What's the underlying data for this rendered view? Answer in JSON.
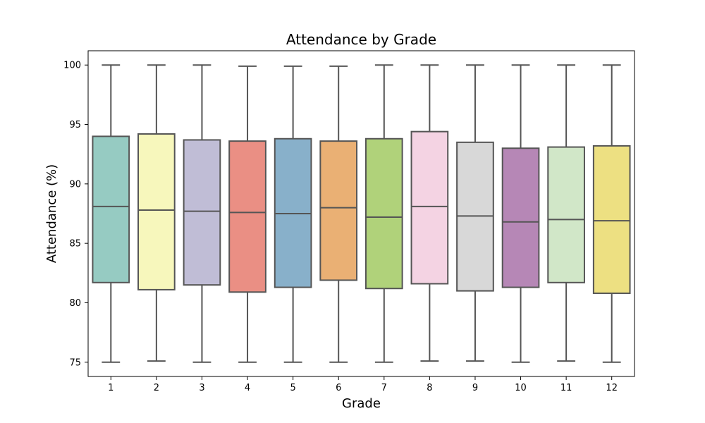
{
  "chart_data": {
    "type": "box",
    "title": "Attendance by Grade",
    "xlabel": "Grade",
    "ylabel": "Attendance (%)",
    "ylim": [
      73.8,
      101.2
    ],
    "yticks": [
      75,
      80,
      85,
      90,
      95,
      100
    ],
    "grid": false,
    "box_edge_color": "#555555",
    "categories": [
      "1",
      "2",
      "3",
      "4",
      "5",
      "6",
      "7",
      "8",
      "9",
      "10",
      "11",
      "12"
    ],
    "boxes": [
      {
        "category": "1",
        "min": 75.0,
        "q1": 81.7,
        "median": 88.1,
        "q3": 94.0,
        "max": 100.0,
        "color": "#96cbc2"
      },
      {
        "category": "2",
        "min": 75.1,
        "q1": 81.1,
        "median": 87.8,
        "q3": 94.2,
        "max": 100.0,
        "color": "#f7f7bc"
      },
      {
        "category": "3",
        "min": 75.0,
        "q1": 81.5,
        "median": 87.7,
        "q3": 93.7,
        "max": 100.0,
        "color": "#c0bdd6"
      },
      {
        "category": "4",
        "min": 75.0,
        "q1": 80.9,
        "median": 87.6,
        "q3": 93.6,
        "max": 99.9,
        "color": "#ea8f84"
      },
      {
        "category": "5",
        "min": 75.0,
        "q1": 81.3,
        "median": 87.5,
        "q3": 93.8,
        "max": 99.9,
        "color": "#88b0ca"
      },
      {
        "category": "6",
        "min": 75.0,
        "q1": 81.9,
        "median": 88.0,
        "q3": 93.6,
        "max": 99.9,
        "color": "#eab074"
      },
      {
        "category": "7",
        "min": 75.0,
        "q1": 81.2,
        "median": 87.2,
        "q3": 93.8,
        "max": 100.0,
        "color": "#b0d27a"
      },
      {
        "category": "8",
        "min": 75.1,
        "q1": 81.6,
        "median": 88.1,
        "q3": 94.4,
        "max": 100.0,
        "color": "#f4d3e3"
      },
      {
        "category": "9",
        "min": 75.1,
        "q1": 81.0,
        "median": 87.3,
        "q3": 93.5,
        "max": 100.0,
        "color": "#d8d8d8"
      },
      {
        "category": "10",
        "min": 75.0,
        "q1": 81.3,
        "median": 86.8,
        "q3": 93.0,
        "max": 100.0,
        "color": "#b687b6"
      },
      {
        "category": "11",
        "min": 75.1,
        "q1": 81.7,
        "median": 87.0,
        "q3": 93.1,
        "max": 100.0,
        "color": "#d1e7c8"
      },
      {
        "category": "12",
        "min": 75.0,
        "q1": 80.8,
        "median": 86.9,
        "q3": 93.2,
        "max": 100.0,
        "color": "#ede082"
      }
    ]
  }
}
